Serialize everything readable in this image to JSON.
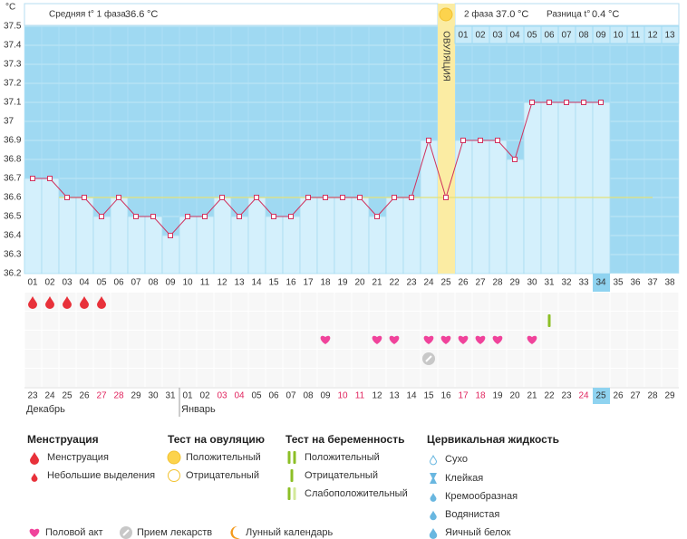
{
  "chart_data": {
    "type": "line",
    "y_unit": "°C",
    "phase1_label": "Средняя t° 1 фаза",
    "phase1_avg": 36.6,
    "phase1_unit": "°C",
    "phase2_label": "2 фаза",
    "phase2_avg": {
      "value": 37,
      "label": "37.0"
    },
    "phase2_unit": "°C",
    "diff_label": "Разница t°",
    "diff": 0.4,
    "diff_unit": "°C",
    "ovulation_label": "ОВУЛЯЦИЯ",
    "ovulation_day": "25",
    "categories": [
      "01",
      "02",
      "03",
      "04",
      "05",
      "06",
      "07",
      "08",
      "09",
      "10",
      "11",
      "12",
      "13",
      "14",
      "15",
      "16",
      "17",
      "18",
      "19",
      "20",
      "21",
      "22",
      "23",
      "24",
      "25",
      "26",
      "27",
      "28",
      "29",
      "30",
      "31",
      "32",
      "33",
      "34",
      "35",
      "36",
      "37",
      "38"
    ],
    "values": [
      36.7,
      36.7,
      36.6,
      36.6,
      36.5,
      36.6,
      36.5,
      36.5,
      36.4,
      36.5,
      36.5,
      36.6,
      36.5,
      36.6,
      36.5,
      36.5,
      36.6,
      36.6,
      36.6,
      36.6,
      36.5,
      36.6,
      36.6,
      36.9,
      36.6,
      36.9,
      36.9,
      36.9,
      36.8,
      37.1,
      37.1,
      37.1,
      37.1,
      37.1,
      null,
      null,
      null,
      null
    ],
    "color": "#d0325e",
    "cover_line": 36.6,
    "luteal_days": [
      "01",
      "02",
      "03",
      "04",
      "05",
      "06",
      "07",
      "08",
      "09",
      "10",
      "11",
      "12",
      "13"
    ],
    "ylim": [
      36.2,
      37.5
    ],
    "yticks": [
      37.5,
      37.4,
      37.3,
      37.2,
      37.1,
      37,
      36.9,
      36.8,
      36.7,
      36.6,
      36.5,
      36.4,
      36.3,
      36.2
    ],
    "today_day": "34",
    "menstruation_days": [
      "01",
      "02",
      "03",
      "04",
      "05"
    ],
    "pregnancy_test_days": [
      "31"
    ],
    "intercourse_days": [
      "18",
      "21",
      "22",
      "24",
      "25",
      "26",
      "27",
      "28",
      "30"
    ],
    "medication_days": [
      "24"
    ],
    "dates": [
      "23",
      "24",
      "25",
      "26",
      "27",
      "28",
      "29",
      "30",
      "31",
      "01",
      "02",
      "03",
      "04",
      "05",
      "06",
      "07",
      "08",
      "09",
      "10",
      "11",
      "12",
      "13",
      "14",
      "15",
      "16",
      "17",
      "18",
      "19",
      "20",
      "21",
      "22",
      "23",
      "24",
      "25",
      "26",
      "27",
      "28",
      "29"
    ],
    "weekend": [
      false,
      false,
      false,
      false,
      true,
      true,
      false,
      false,
      false,
      false,
      false,
      true,
      true,
      false,
      false,
      false,
      false,
      false,
      true,
      true,
      false,
      false,
      false,
      false,
      false,
      true,
      true,
      false,
      false,
      false,
      false,
      false,
      true,
      false,
      false,
      false,
      false,
      false
    ],
    "months": [
      {
        "name": "Декабрь",
        "from": "01"
      },
      {
        "name": "Январь",
        "from": "10"
      }
    ]
  },
  "legend": {
    "menstruation": {
      "title": "Менструация",
      "items": [
        "Менструация",
        "Небольшие выделения"
      ]
    },
    "ovulation_test": {
      "title": "Тест на овуляцию",
      "items": [
        "Положительный",
        "Отрицательный"
      ]
    },
    "pregnancy_test": {
      "title": "Тест на беременность",
      "items": [
        "Положительный",
        "Отрицательный",
        "Слабоположительный"
      ]
    },
    "cervical_fluid": {
      "title": "Цервикальная жидкость",
      "items": [
        "Сухо",
        "Клейкая",
        "Кремообразная",
        "Водянистая",
        "Яичный белок"
      ]
    },
    "other": [
      "Половой акт",
      "Прием лекарств",
      "Лунный календарь"
    ]
  }
}
